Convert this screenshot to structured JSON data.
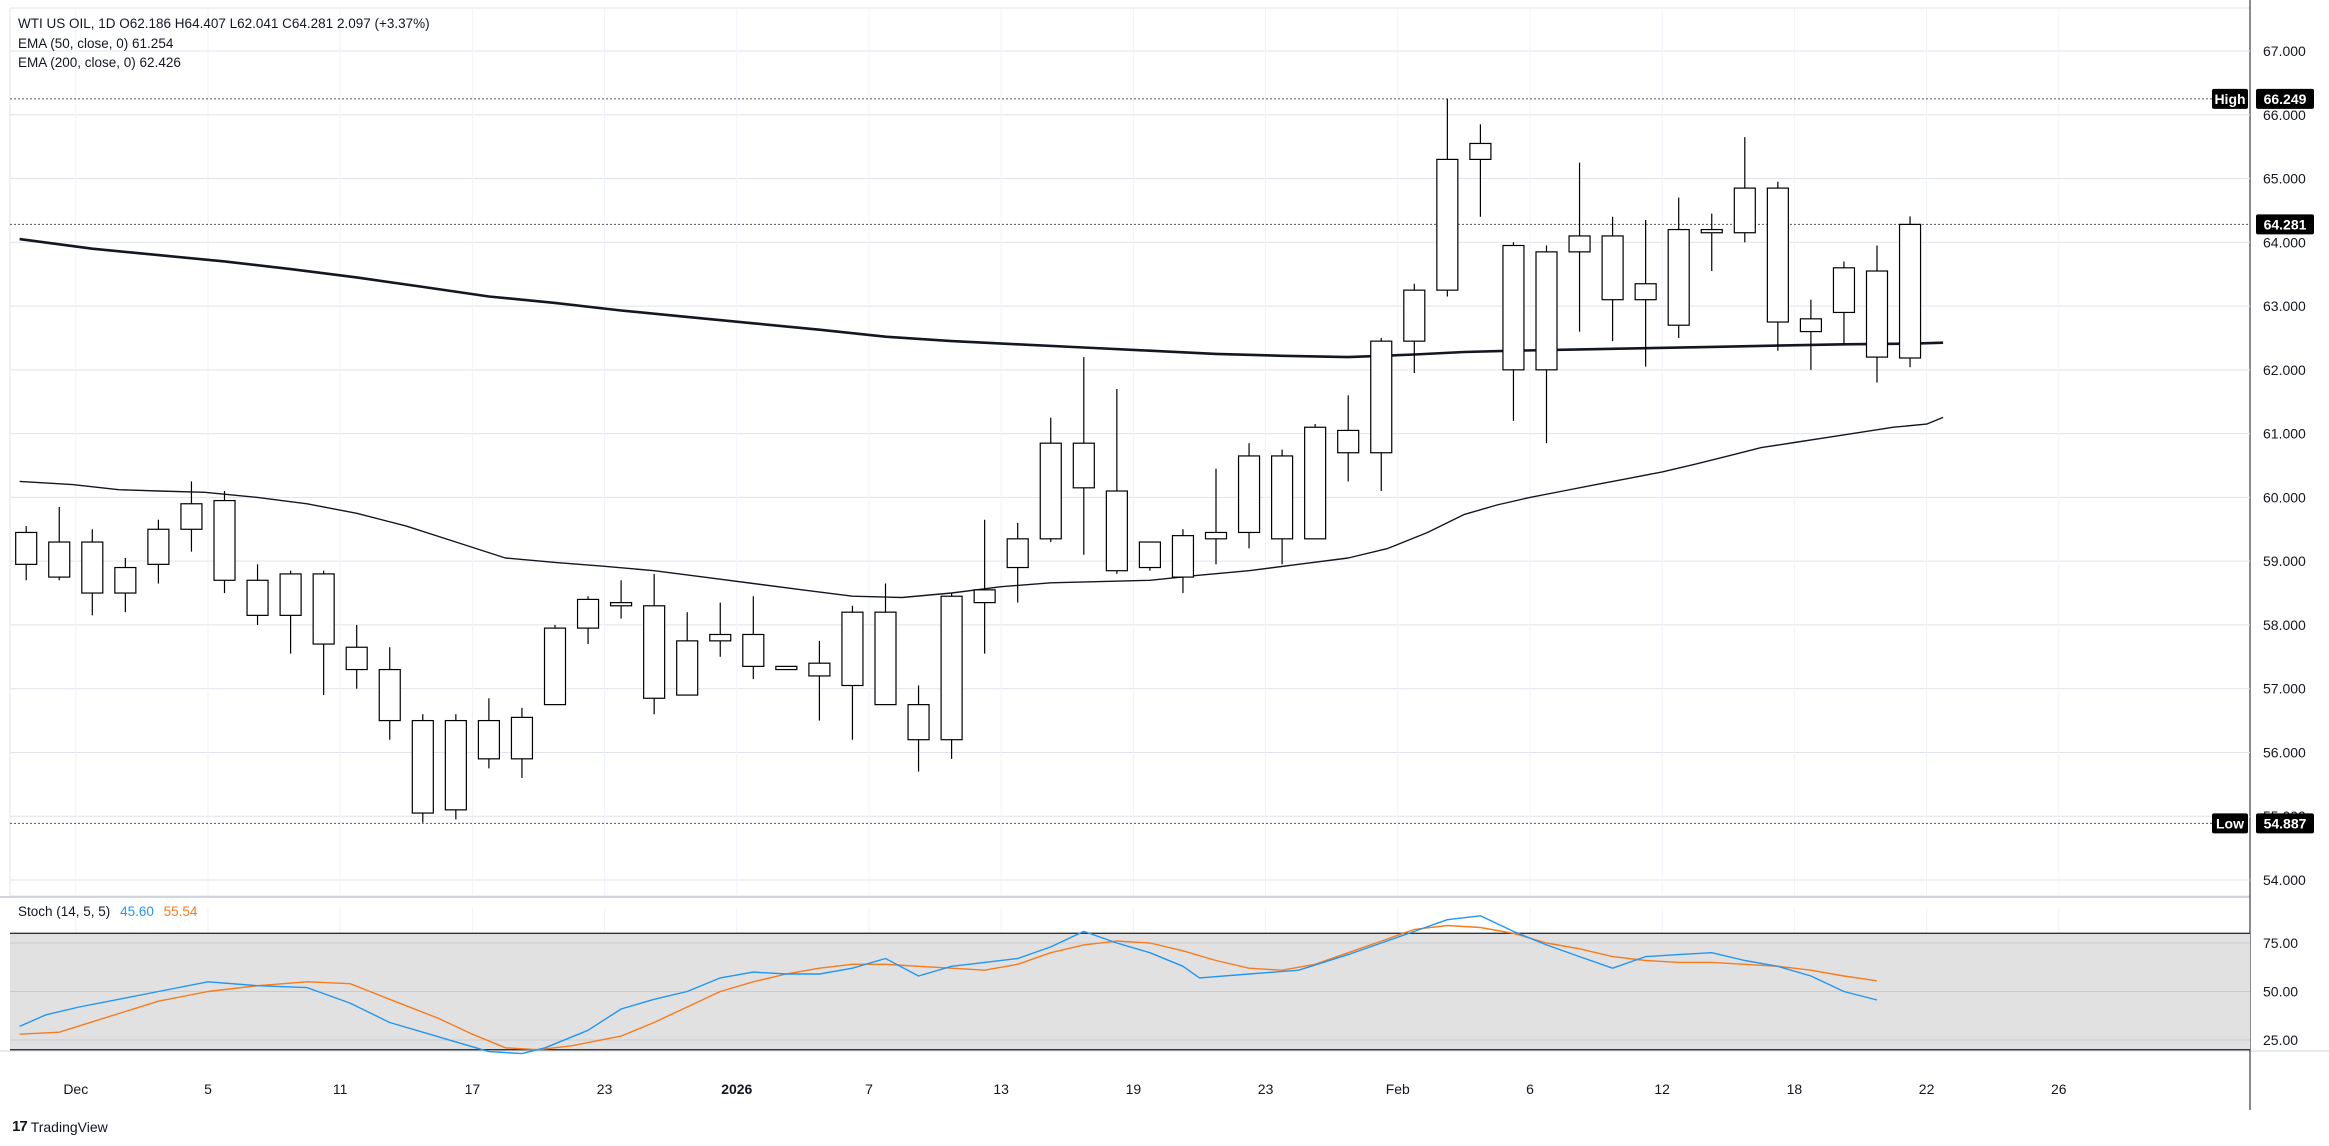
{
  "legend": {
    "main": "WTI US OIL, 1D  O62.186  H64.407  L62.041  C64.281  2.097 (+3.37%)",
    "ema50": "EMA (50, close, 0)  61.254",
    "ema200": "EMA (200, close, 0)  62.426"
  },
  "stoch_legend": {
    "label": "Stoch (14, 5, 5)",
    "k_value": "45.60",
    "d_value": "55.54"
  },
  "footer": {
    "logo": "17",
    "brand": "TradingView"
  },
  "colors": {
    "stoch_k": "#2196f3",
    "stoch_d": "#f57c1f",
    "candle_up": "#ffffff",
    "candle_down": "#000000",
    "stoch_band_fill": "#e1e1e1"
  },
  "chart_data": {
    "type": "candlestick",
    "symbol": "WTI US OIL",
    "interval": "1D",
    "y_ticks": [
      "54.000",
      "55.000",
      "56.000",
      "57.000",
      "58.000",
      "59.000",
      "60.000",
      "61.000",
      "62.000",
      "63.000",
      "64.000",
      "65.000",
      "66.000",
      "67.000"
    ],
    "y_tick_values": [
      54,
      55,
      56,
      57,
      58,
      59,
      60,
      61,
      62,
      63,
      64,
      65,
      66,
      67
    ],
    "ylim": [
      53.6,
      67.35
    ],
    "x_ticks": [
      {
        "slot": 1.5,
        "label": "Dec",
        "bold": false
      },
      {
        "slot": 5.5,
        "label": "5",
        "bold": false
      },
      {
        "slot": 9.5,
        "label": "11",
        "bold": false
      },
      {
        "slot": 13.5,
        "label": "17",
        "bold": false
      },
      {
        "slot": 17.5,
        "label": "23",
        "bold": false
      },
      {
        "slot": 21.5,
        "label": "2026",
        "bold": true
      },
      {
        "slot": 25.5,
        "label": "7",
        "bold": false
      },
      {
        "slot": 29.5,
        "label": "13",
        "bold": false
      },
      {
        "slot": 33.5,
        "label": "19",
        "bold": false
      },
      {
        "slot": 37.5,
        "label": "23",
        "bold": false
      },
      {
        "slot": 41.5,
        "label": "Feb",
        "bold": false
      },
      {
        "slot": 45.5,
        "label": "6",
        "bold": false
      },
      {
        "slot": 49.5,
        "label": "12",
        "bold": false
      },
      {
        "slot": 53.5,
        "label": "18",
        "bold": false
      },
      {
        "slot": 57.5,
        "label": "22",
        "bold": false
      },
      {
        "slot": 61.5,
        "label": "26",
        "bold": false
      }
    ],
    "candles": [
      {
        "o": 58.95,
        "h": 59.55,
        "l": 58.7,
        "c": 59.45
      },
      {
        "o": 58.75,
        "h": 59.85,
        "l": 58.7,
        "c": 59.3
      },
      {
        "o": 58.5,
        "h": 59.5,
        "l": 58.15,
        "c": 59.3
      },
      {
        "o": 58.5,
        "h": 59.05,
        "l": 58.2,
        "c": 58.9
      },
      {
        "o": 58.95,
        "h": 59.65,
        "l": 58.65,
        "c": 59.5
      },
      {
        "o": 59.5,
        "h": 60.25,
        "l": 59.15,
        "c": 59.9
      },
      {
        "o": 58.7,
        "h": 60.1,
        "l": 58.5,
        "c": 59.95
      },
      {
        "o": 58.15,
        "h": 58.95,
        "l": 58.0,
        "c": 58.7
      },
      {
        "o": 58.15,
        "h": 58.85,
        "l": 57.55,
        "c": 58.8
      },
      {
        "o": 57.7,
        "h": 58.85,
        "l": 56.9,
        "c": 58.8
      },
      {
        "o": 57.3,
        "h": 58.0,
        "l": 57.0,
        "c": 57.65
      },
      {
        "o": 56.5,
        "h": 57.65,
        "l": 56.2,
        "c": 57.3
      },
      {
        "o": 55.05,
        "h": 56.6,
        "l": 54.9,
        "c": 56.5
      },
      {
        "o": 55.1,
        "h": 56.6,
        "l": 54.95,
        "c": 56.5
      },
      {
        "o": 55.9,
        "h": 56.85,
        "l": 55.75,
        "c": 56.5
      },
      {
        "o": 55.9,
        "h": 56.7,
        "l": 55.6,
        "c": 56.55
      },
      {
        "o": 56.75,
        "h": 58.0,
        "l": 56.75,
        "c": 57.95
      },
      {
        "o": 57.95,
        "h": 58.45,
        "l": 57.7,
        "c": 58.4
      },
      {
        "o": 58.3,
        "h": 58.7,
        "l": 58.1,
        "c": 58.35
      },
      {
        "o": 56.85,
        "h": 58.8,
        "l": 56.6,
        "c": 58.3
      },
      {
        "o": 56.9,
        "h": 58.2,
        "l": 56.9,
        "c": 57.75
      },
      {
        "o": 57.75,
        "h": 58.35,
        "l": 57.5,
        "c": 57.85
      },
      {
        "o": 57.35,
        "h": 58.45,
        "l": 57.15,
        "c": 57.85
      },
      {
        "o": 57.3,
        "h": 57.35,
        "l": 57.3,
        "c": 57.35
      },
      {
        "o": 57.2,
        "h": 57.75,
        "l": 56.5,
        "c": 57.4
      },
      {
        "o": 57.05,
        "h": 58.3,
        "l": 56.2,
        "c": 58.2
      },
      {
        "o": 56.75,
        "h": 58.65,
        "l": 56.75,
        "c": 58.2
      },
      {
        "o": 56.2,
        "h": 57.05,
        "l": 55.7,
        "c": 56.75
      },
      {
        "o": 56.2,
        "h": 58.5,
        "l": 55.9,
        "c": 58.45
      },
      {
        "o": 58.35,
        "h": 59.65,
        "l": 57.55,
        "c": 58.55
      },
      {
        "o": 58.9,
        "h": 59.6,
        "l": 58.35,
        "c": 59.35
      },
      {
        "o": 59.35,
        "h": 61.25,
        "l": 59.3,
        "c": 60.85
      },
      {
        "o": 60.15,
        "h": 62.2,
        "l": 59.1,
        "c": 60.85
      },
      {
        "o": 58.85,
        "h": 61.7,
        "l": 58.8,
        "c": 60.1
      },
      {
        "o": 58.9,
        "h": 59.3,
        "l": 58.85,
        "c": 59.3
      },
      {
        "o": 58.75,
        "h": 59.5,
        "l": 58.5,
        "c": 59.4
      },
      {
        "o": 59.35,
        "h": 60.45,
        "l": 58.95,
        "c": 59.45
      },
      {
        "o": 59.45,
        "h": 60.85,
        "l": 59.2,
        "c": 60.65
      },
      {
        "o": 59.35,
        "h": 60.75,
        "l": 58.95,
        "c": 60.65
      },
      {
        "o": 59.35,
        "h": 61.15,
        "l": 59.35,
        "c": 61.1
      },
      {
        "o": 60.7,
        "h": 61.6,
        "l": 60.25,
        "c": 61.05
      },
      {
        "o": 60.7,
        "h": 62.5,
        "l": 60.1,
        "c": 62.45
      },
      {
        "o": 62.45,
        "h": 63.35,
        "l": 61.95,
        "c": 63.25
      },
      {
        "o": 63.25,
        "h": 66.25,
        "l": 63.15,
        "c": 65.3
      },
      {
        "o": 65.3,
        "h": 65.85,
        "l": 64.4,
        "c": 65.55
      },
      {
        "o": 62.0,
        "h": 64.0,
        "l": 61.2,
        "c": 63.95
      },
      {
        "o": 62.0,
        "h": 63.95,
        "l": 60.85,
        "c": 63.85
      },
      {
        "o": 63.85,
        "h": 65.25,
        "l": 62.6,
        "c": 64.1
      },
      {
        "o": 63.1,
        "h": 64.4,
        "l": 62.45,
        "c": 64.1
      },
      {
        "o": 63.1,
        "h": 64.35,
        "l": 62.05,
        "c": 63.35
      },
      {
        "o": 62.7,
        "h": 64.7,
        "l": 62.5,
        "c": 64.2
      },
      {
        "o": 64.15,
        "h": 64.45,
        "l": 63.55,
        "c": 64.2
      },
      {
        "o": 64.15,
        "h": 65.65,
        "l": 64.0,
        "c": 64.85
      },
      {
        "o": 62.75,
        "h": 64.95,
        "l": 62.3,
        "c": 64.85
      },
      {
        "o": 62.6,
        "h": 63.1,
        "l": 62.0,
        "c": 62.8
      },
      {
        "o": 62.9,
        "h": 63.7,
        "l": 62.4,
        "c": 63.6
      },
      {
        "o": 62.2,
        "h": 63.95,
        "l": 61.8,
        "c": 63.55
      },
      {
        "o": 62.186,
        "h": 64.407,
        "l": 62.041,
        "c": 64.281
      }
    ],
    "ema50": [
      [
        -0.2,
        60.25
      ],
      [
        1.4,
        60.2
      ],
      [
        2.8,
        60.12
      ],
      [
        4.0,
        60.1
      ],
      [
        5.4,
        60.08
      ],
      [
        7.0,
        60.0
      ],
      [
        8.5,
        59.9
      ],
      [
        10.0,
        59.75
      ],
      [
        11.5,
        59.55
      ],
      [
        13.0,
        59.3
      ],
      [
        14.5,
        59.05
      ],
      [
        16.0,
        58.98
      ],
      [
        17.5,
        58.92
      ],
      [
        19.0,
        58.85
      ],
      [
        20.5,
        58.75
      ],
      [
        22.0,
        58.65
      ],
      [
        23.5,
        58.55
      ],
      [
        25.0,
        58.45
      ],
      [
        26.5,
        58.43
      ],
      [
        28.0,
        58.5
      ],
      [
        29.5,
        58.6
      ],
      [
        31.0,
        58.66
      ],
      [
        32.5,
        58.68
      ],
      [
        34.0,
        58.7
      ],
      [
        35.5,
        58.78
      ],
      [
        37.0,
        58.85
      ],
      [
        38.5,
        58.95
      ],
      [
        40.0,
        59.05
      ],
      [
        41.2,
        59.2
      ],
      [
        42.4,
        59.45
      ],
      [
        43.5,
        59.73
      ],
      [
        44.5,
        59.88
      ],
      [
        45.5,
        60.0
      ],
      [
        46.5,
        60.1
      ],
      [
        47.5,
        60.2
      ],
      [
        48.5,
        60.3
      ],
      [
        49.5,
        60.4
      ],
      [
        50.5,
        60.52
      ],
      [
        51.5,
        60.65
      ],
      [
        52.5,
        60.78
      ],
      [
        53.5,
        60.86
      ],
      [
        54.5,
        60.94
      ],
      [
        55.5,
        61.02
      ],
      [
        56.5,
        61.1
      ],
      [
        57.5,
        61.15
      ],
      [
        58.0,
        61.254
      ]
    ],
    "ema200": [
      [
        -0.2,
        64.05
      ],
      [
        2.0,
        63.9
      ],
      [
        4.0,
        63.8
      ],
      [
        6.0,
        63.7
      ],
      [
        8.0,
        63.58
      ],
      [
        10.0,
        63.45
      ],
      [
        12.0,
        63.3
      ],
      [
        14.0,
        63.15
      ],
      [
        16.0,
        63.05
      ],
      [
        18.0,
        62.93
      ],
      [
        20.0,
        62.83
      ],
      [
        22.0,
        62.73
      ],
      [
        24.0,
        62.63
      ],
      [
        26.0,
        62.52
      ],
      [
        28.0,
        62.45
      ],
      [
        30.0,
        62.4
      ],
      [
        32.0,
        62.35
      ],
      [
        34.0,
        62.3
      ],
      [
        36.0,
        62.25
      ],
      [
        38.0,
        62.22
      ],
      [
        40.0,
        62.2
      ],
      [
        41.0,
        62.22
      ],
      [
        42.0,
        62.24
      ],
      [
        43.5,
        62.28
      ],
      [
        45.0,
        62.3
      ],
      [
        47.0,
        62.32
      ],
      [
        49.0,
        62.34
      ],
      [
        51.0,
        62.36
      ],
      [
        53.0,
        62.38
      ],
      [
        55.0,
        62.4
      ],
      [
        57.0,
        62.41
      ],
      [
        58.0,
        62.426
      ]
    ],
    "high_line": {
      "label": "High",
      "value": 66.249
    },
    "low_line": {
      "label": "Low",
      "value": 54.887
    },
    "last_price": {
      "label": "64.281",
      "value": 64.281
    },
    "high_label": "66.249",
    "low_label": "54.887",
    "stoch": {
      "ticks": [
        "25.00",
        "50.00",
        "75.00"
      ],
      "tick_values": [
        25,
        50,
        75
      ],
      "ylim": [
        16,
        97
      ],
      "band": [
        20,
        80
      ],
      "k": [
        [
          -0.2,
          32
        ],
        [
          0.6,
          38
        ],
        [
          1.6,
          42
        ],
        [
          2.8,
          46
        ],
        [
          4.0,
          50
        ],
        [
          5.5,
          55
        ],
        [
          7.0,
          53
        ],
        [
          8.5,
          52
        ],
        [
          9.8,
          44
        ],
        [
          11.0,
          34
        ],
        [
          12.0,
          29
        ],
        [
          13.0,
          24
        ],
        [
          14.0,
          19
        ],
        [
          15.0,
          18
        ],
        [
          15.7,
          21
        ],
        [
          17.0,
          30
        ],
        [
          18.0,
          41
        ],
        [
          19.0,
          46
        ],
        [
          20.0,
          50
        ],
        [
          21.0,
          57
        ],
        [
          22.0,
          60
        ],
        [
          23.0,
          59
        ],
        [
          24.0,
          59
        ],
        [
          25.0,
          62
        ],
        [
          26.0,
          67
        ],
        [
          27.0,
          58
        ],
        [
          28.0,
          63
        ],
        [
          29.0,
          65
        ],
        [
          30.0,
          67
        ],
        [
          31.0,
          73
        ],
        [
          32.0,
          81
        ],
        [
          33.0,
          75
        ],
        [
          34.0,
          70
        ],
        [
          35.0,
          63
        ],
        [
          35.5,
          57
        ],
        [
          37.0,
          59
        ],
        [
          38.5,
          61
        ],
        [
          40.0,
          69
        ],
        [
          41.0,
          75
        ],
        [
          42.0,
          81
        ],
        [
          43.0,
          87
        ],
        [
          44.0,
          89
        ],
        [
          45.0,
          81
        ],
        [
          46.0,
          74
        ],
        [
          47.0,
          68
        ],
        [
          48.0,
          62
        ],
        [
          49.0,
          68
        ],
        [
          50.0,
          69
        ],
        [
          51.0,
          70
        ],
        [
          52.0,
          66
        ],
        [
          53.0,
          63
        ],
        [
          54.0,
          58
        ],
        [
          55.0,
          50
        ],
        [
          56.0,
          45.6
        ]
      ],
      "d": [
        [
          -0.2,
          28
        ],
        [
          1.0,
          29
        ],
        [
          2.5,
          37
        ],
        [
          4.0,
          45
        ],
        [
          5.5,
          50
        ],
        [
          7.0,
          53
        ],
        [
          8.5,
          55
        ],
        [
          9.8,
          54
        ],
        [
          11.0,
          46
        ],
        [
          12.5,
          36
        ],
        [
          13.5,
          28
        ],
        [
          14.5,
          21
        ],
        [
          15.5,
          20
        ],
        [
          16.5,
          22
        ],
        [
          18.0,
          27
        ],
        [
          19.0,
          34
        ],
        [
          20.0,
          42
        ],
        [
          21.0,
          50
        ],
        [
          22.0,
          55
        ],
        [
          23.0,
          59
        ],
        [
          24.0,
          62
        ],
        [
          25.0,
          64
        ],
        [
          26.0,
          64
        ],
        [
          27.0,
          63
        ],
        [
          28.0,
          62
        ],
        [
          29.0,
          61
        ],
        [
          30.0,
          64
        ],
        [
          31.0,
          70
        ],
        [
          32.0,
          74
        ],
        [
          33.0,
          76
        ],
        [
          34.0,
          75
        ],
        [
          35.0,
          71
        ],
        [
          36.0,
          66
        ],
        [
          37.0,
          62
        ],
        [
          38.0,
          61
        ],
        [
          39.0,
          64
        ],
        [
          40.0,
          70
        ],
        [
          41.0,
          76
        ],
        [
          42.0,
          82
        ],
        [
          43.0,
          84
        ],
        [
          44.0,
          83
        ],
        [
          45.0,
          80
        ],
        [
          46.0,
          75
        ],
        [
          47.0,
          72
        ],
        [
          48.0,
          68
        ],
        [
          49.0,
          66
        ],
        [
          50.0,
          65
        ],
        [
          51.0,
          65
        ],
        [
          52.0,
          64
        ],
        [
          53.0,
          63
        ],
        [
          54.0,
          61
        ],
        [
          55.0,
          58
        ],
        [
          56.0,
          55.54
        ]
      ]
    }
  }
}
